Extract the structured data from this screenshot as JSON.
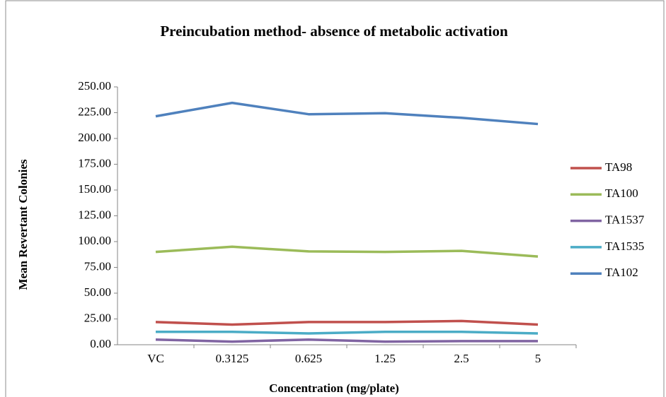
{
  "chart_data": {
    "type": "line",
    "title": "Preincubation method- absence of metabolic activation",
    "x_label": "Concentration (mg/plate)",
    "y_label": "Mean Revertant Colonies",
    "categories": [
      "VC",
      "0.3125",
      "0.625",
      "1.25",
      "2.5",
      "5"
    ],
    "series": [
      {
        "name": "TA98",
        "color": "#c0504d",
        "values": [
          22,
          19.5,
          22,
          22,
          23,
          19.5
        ]
      },
      {
        "name": "TA100",
        "color": "#9bbb59",
        "values": [
          90,
          95,
          90.5,
          90,
          91,
          85.5
        ]
      },
      {
        "name": "TA1537",
        "color": "#8064a2",
        "values": [
          5,
          3,
          5,
          3,
          3.5,
          3.5
        ]
      },
      {
        "name": "TA1535",
        "color": "#4bacc6",
        "values": [
          12.5,
          12.5,
          11,
          12.5,
          12.5,
          11
        ]
      },
      {
        "name": "TA102",
        "color": "#4f81bd",
        "values": [
          221.5,
          234.5,
          223.5,
          224.5,
          220,
          214
        ]
      }
    ],
    "ylim": [
      0,
      250
    ],
    "yticks": [
      {
        "value": 0,
        "label": "0.00"
      },
      {
        "value": 25,
        "label": "25.00"
      },
      {
        "value": 50,
        "label": "50.00"
      },
      {
        "value": 75,
        "label": "75.00"
      },
      {
        "value": 100,
        "label": "100.00"
      },
      {
        "value": 125,
        "label": "125.00"
      },
      {
        "value": 150,
        "label": "150.00"
      },
      {
        "value": 175,
        "label": "175.00"
      },
      {
        "value": 200,
        "label": "200.00"
      },
      {
        "value": 225,
        "label": "225.00"
      },
      {
        "value": 250,
        "label": "250.00"
      }
    ],
    "grid": false,
    "legend": "right"
  }
}
